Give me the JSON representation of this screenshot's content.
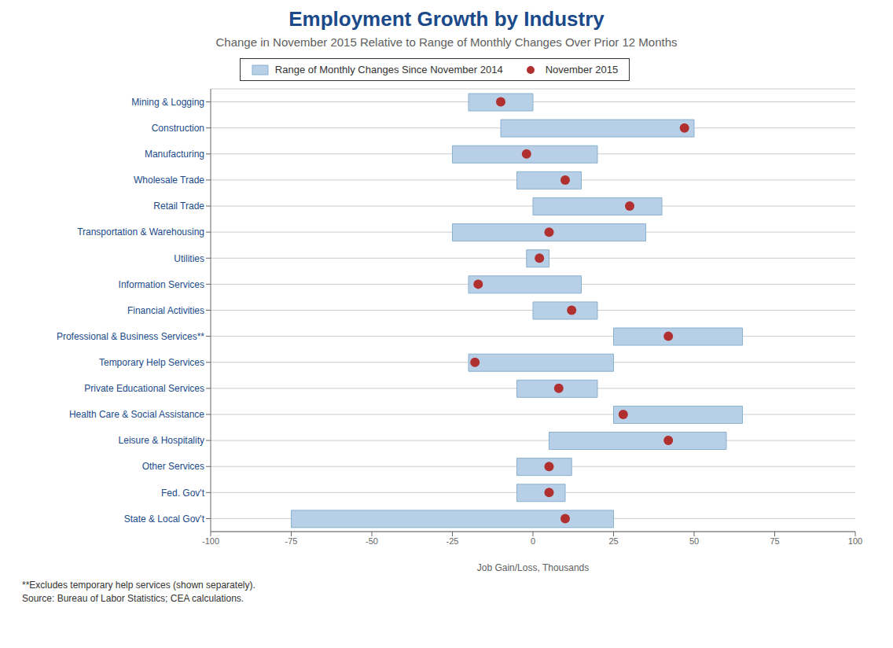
{
  "chart_data": {
    "type": "bar",
    "orientation": "horizontal",
    "title": "Employment Growth by Industry",
    "subtitle": "Change in November 2015 Relative to Range of Monthly Changes Over Prior 12 Months",
    "xlabel": "Job Gain/Loss, Thousands",
    "annotations": [
      "**Excludes temporary help services (shown separately).",
      "Source: Bureau of Labor Statistics; CEA calculations."
    ],
    "categories": [
      "Mining & Logging",
      "Construction",
      "Manufacturing",
      "Wholesale Trade",
      "Retail Trade",
      "Transportation & Warehousing",
      "Utilities",
      "Information Services",
      "Financial Activities",
      "Professional & Business Services**",
      "Temporary Help Services",
      "Private Educational Services",
      "Health Care & Social Assistance",
      "Leisure & Hospitality",
      "Other Services",
      "Fed. Gov't",
      "State & Local Gov't"
    ],
    "series": [
      {
        "name": "Range of Monthly Changes Since November 2014",
        "type": "bar",
        "color": "#b8cfe8",
        "low": [
          -20,
          -10,
          -25,
          -5,
          0,
          -25,
          -2,
          -20,
          0,
          25,
          -20,
          -5,
          25,
          5,
          -5,
          -5,
          -75
        ],
        "high": [
          0,
          50,
          20,
          15,
          40,
          35,
          5,
          15,
          20,
          65,
          25,
          20,
          65,
          60,
          12,
          10,
          25
        ]
      },
      {
        "name": "November 2015",
        "type": "scatter",
        "color": "#b03030",
        "marker": "circle",
        "values": [
          -10,
          47,
          -2,
          10,
          30,
          5,
          2,
          -17,
          12,
          42,
          -18,
          8,
          28,
          42,
          5,
          5,
          10
        ]
      }
    ],
    "xlim": [
      -100,
      100
    ],
    "xticks": [
      -100,
      -75,
      -50,
      -25,
      0,
      25,
      50,
      75,
      100
    ],
    "grid": true,
    "legend": "top"
  }
}
